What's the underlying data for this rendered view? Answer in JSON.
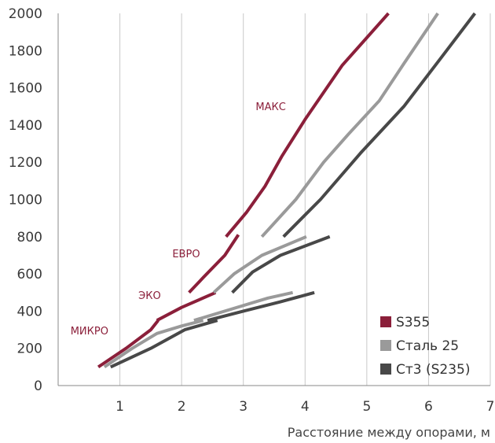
{
  "chart_data": {
    "type": "line",
    "xlabel": "Расстояние между опорами, м",
    "ylabel": "",
    "title": "",
    "xlim": [
      0,
      7.0
    ],
    "ylim": [
      0,
      2000
    ],
    "xticks": [
      1,
      2,
      3,
      4,
      5,
      6,
      7
    ],
    "yticks": [
      0,
      200,
      400,
      600,
      800,
      1000,
      1200,
      1400,
      1600,
      1800,
      2000
    ],
    "grid": "vertical",
    "legend": {
      "position": "bottom-right",
      "entries": [
        {
          "name": "S355",
          "color": "#8b1f3a"
        },
        {
          "name": "Сталь 25",
          "color": "#9a9a9a"
        },
        {
          "name": "Ст3 (S235)",
          "color": "#484848"
        }
      ]
    },
    "annotations": [
      {
        "text": "МАКС",
        "x": 3.2,
        "y": 1480
      },
      {
        "text": "ЕВРО",
        "x": 1.85,
        "y": 690
      },
      {
        "text": "ЭКО",
        "x": 1.3,
        "y": 465
      },
      {
        "text": "МИКРО",
        "x": 0.2,
        "y": 275
      }
    ],
    "series": [
      {
        "name": "S355",
        "color": "#8b1f3a",
        "segments": [
          [
            [
              0.65,
              100
            ],
            [
              1.1,
              200
            ],
            [
              1.5,
              300
            ],
            [
              1.62,
              350
            ]
          ],
          [
            [
              1.6,
              350
            ],
            [
              2.0,
              420
            ],
            [
              2.55,
              500
            ]
          ],
          [
            [
              2.12,
              500
            ],
            [
              2.35,
              580
            ],
            [
              2.7,
              700
            ],
            [
              2.92,
              810
            ]
          ],
          [
            [
              2.72,
              800
            ],
            [
              3.05,
              930
            ],
            [
              3.35,
              1070
            ],
            [
              3.62,
              1230
            ],
            [
              4.0,
              1430
            ],
            [
              4.6,
              1720
            ],
            [
              5.35,
              2000
            ]
          ]
        ]
      },
      {
        "name": "Сталь 25",
        "color": "#9a9a9a",
        "segments": [
          [
            [
              0.75,
              100
            ],
            [
              1.2,
              200
            ],
            [
              1.6,
              280
            ],
            [
              2.0,
              320
            ],
            [
              2.35,
              350
            ]
          ],
          [
            [
              2.2,
              350
            ],
            [
              2.8,
              410
            ],
            [
              3.4,
              470
            ],
            [
              3.8,
              500
            ]
          ],
          [
            [
              2.52,
              500
            ],
            [
              2.85,
              600
            ],
            [
              3.3,
              700
            ],
            [
              4.02,
              800
            ]
          ],
          [
            [
              3.3,
              800
            ],
            [
              3.85,
              1000
            ],
            [
              4.3,
              1200
            ],
            [
              4.7,
              1350
            ],
            [
              5.2,
              1530
            ],
            [
              5.6,
              1730
            ],
            [
              6.15,
              2000
            ]
          ]
        ]
      },
      {
        "name": "Ст3 (S235)",
        "color": "#484848",
        "segments": [
          [
            [
              0.85,
              100
            ],
            [
              1.5,
              200
            ],
            [
              2.05,
              300
            ],
            [
              2.58,
              350
            ]
          ],
          [
            [
              2.42,
              350
            ],
            [
              3.0,
              400
            ],
            [
              3.6,
              450
            ],
            [
              4.15,
              500
            ]
          ],
          [
            [
              2.82,
              500
            ],
            [
              3.15,
              610
            ],
            [
              3.6,
              700
            ],
            [
              4.4,
              800
            ]
          ],
          [
            [
              3.65,
              800
            ],
            [
              4.25,
              1000
            ],
            [
              4.9,
              1250
            ],
            [
              5.6,
              1500
            ],
            [
              6.2,
              1760
            ],
            [
              6.75,
              2000
            ]
          ]
        ]
      }
    ]
  }
}
